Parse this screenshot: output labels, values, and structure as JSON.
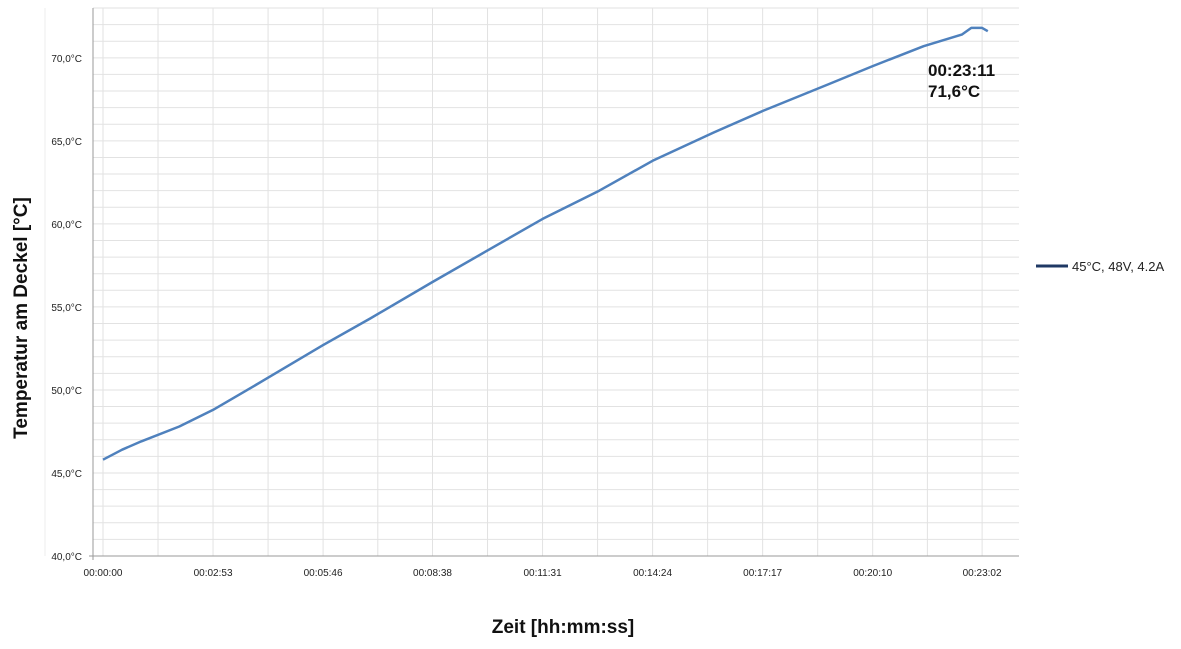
{
  "chart_data": {
    "type": "line",
    "xlabel": "Zeit  [hh:mm:ss]",
    "ylabel": "Temperatur am Deckel [°C]",
    "ylim": [
      40,
      73
    ],
    "xlim": [
      "00:00:00",
      "00:24:00"
    ],
    "x_tick_labels": [
      "00:00:00",
      "00:02:53",
      "00:05:46",
      "00:08:38",
      "00:11:31",
      "00:14:24",
      "00:17:17",
      "00:20:10",
      "00:23:02"
    ],
    "x_ticks": [
      "00:00:00",
      "00:02:53",
      "00:05:46",
      "00:08:38",
      "00:11:31",
      "00:14:24",
      "00:17:17",
      "00:20:10",
      "00:23:02"
    ],
    "y_tick_labels": [
      "40,0°C",
      "45,0°C",
      "50,0°C",
      "55,0°C",
      "60,0°C",
      "65,0°C",
      "70,0°C"
    ],
    "y_ticks": [
      40,
      45,
      50,
      55,
      60,
      65,
      70
    ],
    "grid": true,
    "legend_position": "right",
    "series": [
      {
        "name": "45°C, 48V, 4.2A",
        "color": "#4f81bd",
        "x": [
          "00:00:00",
          "00:00:30",
          "00:01:00",
          "00:02:00",
          "00:02:53",
          "00:04:00",
          "00:05:46",
          "00:07:00",
          "00:08:38",
          "00:10:00",
          "00:11:31",
          "00:13:00",
          "00:14:24",
          "00:16:00",
          "00:17:17",
          "00:19:00",
          "00:20:10",
          "00:21:30",
          "00:22:30",
          "00:22:45",
          "00:23:02",
          "00:23:11"
        ],
        "y": [
          45.8,
          46.4,
          46.9,
          47.8,
          48.8,
          50.3,
          52.7,
          54.3,
          56.5,
          58.3,
          60.3,
          62.0,
          63.8,
          65.5,
          66.8,
          68.4,
          69.5,
          70.7,
          71.4,
          71.8,
          71.8,
          71.6
        ]
      }
    ],
    "annotation": {
      "time": "00:23:11",
      "value": "71,6°C"
    }
  }
}
